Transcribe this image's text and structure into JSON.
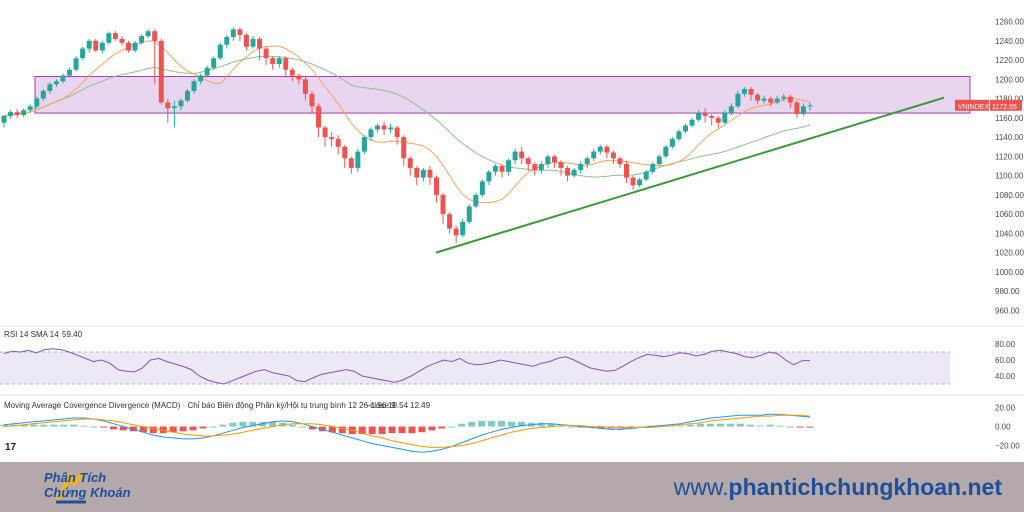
{
  "chart_data": {
    "type": "candlestick",
    "symbol": "VNINDEX",
    "last_price": "1172.55",
    "price_ticks": [
      "1260.00",
      "1240.00",
      "1220.00",
      "1200.00",
      "1180.00",
      "1160.00",
      "1140.00",
      "1120.00",
      "1100.00",
      "1080.00",
      "1060.00",
      "1040.00",
      "1020.00",
      "1000.00",
      "980.00",
      "960.00"
    ],
    "price_range": [
      950,
      1270
    ],
    "resistance_zone": [
      1165,
      1203
    ],
    "trendline": {
      "from": [
        0,
        1020
      ],
      "to": [
        1,
        1181
      ]
    },
    "colors": {
      "up": "#26a69a",
      "down": "#ef5350",
      "ma_fast": "#f7a35c",
      "ma_slow": "#8bc48a",
      "zone_fill": "#e6d1ef",
      "zone_border": "#9c27b0",
      "trend": "#3a9a3a",
      "rsi": "#7e57c2",
      "rsi_band": "#ede7f6",
      "macd": "#2196f3",
      "signal": "#ff9800",
      "badge": "#ef5350"
    },
    "candles": [
      [
        1155,
        1162,
        1150,
        1163
      ],
      [
        1162,
        1166,
        1159,
        1168
      ],
      [
        1166,
        1163,
        1160,
        1169
      ],
      [
        1163,
        1168,
        1161,
        1170
      ],
      [
        1168,
        1172,
        1165,
        1174
      ],
      [
        1172,
        1180,
        1170,
        1182
      ],
      [
        1180,
        1188,
        1178,
        1190
      ],
      [
        1188,
        1195,
        1185,
        1197
      ],
      [
        1195,
        1198,
        1192,
        1200
      ],
      [
        1198,
        1204,
        1196,
        1206
      ],
      [
        1204,
        1210,
        1202,
        1212
      ],
      [
        1210,
        1222,
        1208,
        1224
      ],
      [
        1222,
        1232,
        1220,
        1234
      ],
      [
        1232,
        1240,
        1228,
        1242
      ],
      [
        1240,
        1230,
        1228,
        1242
      ],
      [
        1230,
        1238,
        1227,
        1240
      ],
      [
        1238,
        1248,
        1236,
        1250
      ],
      [
        1248,
        1242,
        1240,
        1250
      ],
      [
        1242,
        1238,
        1235,
        1245
      ],
      [
        1238,
        1230,
        1228,
        1240
      ],
      [
        1230,
        1238,
        1228,
        1240
      ],
      [
        1238,
        1245,
        1236,
        1247
      ],
      [
        1245,
        1250,
        1243,
        1252
      ],
      [
        1250,
        1240,
        1195,
        1252
      ],
      [
        1240,
        1176,
        1174,
        1242
      ],
      [
        1176,
        1170,
        1155,
        1180
      ],
      [
        1170,
        1172,
        1150,
        1178
      ],
      [
        1172,
        1178,
        1168,
        1180
      ],
      [
        1178,
        1188,
        1176,
        1190
      ],
      [
        1188,
        1198,
        1185,
        1200
      ],
      [
        1198,
        1204,
        1195,
        1206
      ],
      [
        1204,
        1212,
        1202,
        1214
      ],
      [
        1212,
        1222,
        1210,
        1224
      ],
      [
        1222,
        1236,
        1220,
        1238
      ],
      [
        1236,
        1244,
        1232,
        1246
      ],
      [
        1244,
        1252,
        1240,
        1254
      ],
      [
        1252,
        1246,
        1240,
        1254
      ],
      [
        1246,
        1234,
        1230,
        1248
      ],
      [
        1234,
        1242,
        1232,
        1245
      ],
      [
        1242,
        1232,
        1220,
        1244
      ],
      [
        1232,
        1222,
        1215,
        1234
      ],
      [
        1222,
        1216,
        1210,
        1224
      ],
      [
        1216,
        1222,
        1212,
        1224
      ],
      [
        1222,
        1210,
        1202,
        1224
      ],
      [
        1210,
        1204,
        1198,
        1212
      ],
      [
        1204,
        1200,
        1195,
        1206
      ],
      [
        1200,
        1185,
        1178,
        1202
      ],
      [
        1185,
        1172,
        1165,
        1188
      ],
      [
        1172,
        1150,
        1140,
        1175
      ],
      [
        1150,
        1140,
        1130,
        1152
      ],
      [
        1140,
        1138,
        1130,
        1145
      ],
      [
        1138,
        1130,
        1122,
        1142
      ],
      [
        1130,
        1118,
        1108,
        1132
      ],
      [
        1118,
        1108,
        1102,
        1120
      ],
      [
        1108,
        1125,
        1104,
        1128
      ],
      [
        1125,
        1140,
        1122,
        1142
      ],
      [
        1140,
        1148,
        1136,
        1150
      ],
      [
        1148,
        1152,
        1145,
        1154
      ],
      [
        1152,
        1148,
        1142,
        1156
      ],
      [
        1148,
        1150,
        1144,
        1154
      ],
      [
        1150,
        1140,
        1132,
        1152
      ],
      [
        1140,
        1118,
        1110,
        1142
      ],
      [
        1118,
        1108,
        1100,
        1120
      ],
      [
        1108,
        1098,
        1090,
        1110
      ],
      [
        1098,
        1106,
        1094,
        1108
      ],
      [
        1106,
        1098,
        1090,
        1110
      ],
      [
        1098,
        1080,
        1072,
        1100
      ],
      [
        1080,
        1060,
        1050,
        1082
      ],
      [
        1060,
        1045,
        1040,
        1062
      ],
      [
        1045,
        1038,
        1030,
        1048
      ],
      [
        1038,
        1052,
        1036,
        1055
      ],
      [
        1052,
        1068,
        1050,
        1070
      ],
      [
        1068,
        1080,
        1066,
        1082
      ],
      [
        1080,
        1094,
        1078,
        1096
      ],
      [
        1094,
        1104,
        1090,
        1106
      ],
      [
        1104,
        1110,
        1100,
        1112
      ],
      [
        1110,
        1104,
        1098,
        1112
      ],
      [
        1104,
        1116,
        1100,
        1118
      ],
      [
        1116,
        1125,
        1112,
        1128
      ],
      [
        1125,
        1118,
        1112,
        1130
      ],
      [
        1118,
        1112,
        1105,
        1120
      ],
      [
        1112,
        1106,
        1100,
        1114
      ],
      [
        1106,
        1112,
        1102,
        1115
      ],
      [
        1112,
        1120,
        1108,
        1122
      ],
      [
        1120,
        1114,
        1108,
        1122
      ],
      [
        1114,
        1108,
        1100,
        1116
      ],
      [
        1108,
        1100,
        1094,
        1110
      ],
      [
        1100,
        1106,
        1098,
        1108
      ],
      [
        1106,
        1112,
        1102,
        1115
      ],
      [
        1112,
        1118,
        1108,
        1120
      ],
      [
        1118,
        1125,
        1115,
        1128
      ],
      [
        1125,
        1130,
        1122,
        1132
      ],
      [
        1130,
        1124,
        1118,
        1132
      ],
      [
        1124,
        1118,
        1112,
        1126
      ],
      [
        1118,
        1112,
        1108,
        1120
      ],
      [
        1112,
        1098,
        1092,
        1115
      ],
      [
        1098,
        1090,
        1085,
        1100
      ],
      [
        1090,
        1096,
        1088,
        1098
      ],
      [
        1096,
        1104,
        1094,
        1106
      ],
      [
        1104,
        1112,
        1102,
        1114
      ],
      [
        1112,
        1120,
        1110,
        1122
      ],
      [
        1120,
        1130,
        1118,
        1132
      ],
      [
        1130,
        1138,
        1128,
        1140
      ],
      [
        1138,
        1146,
        1136,
        1148
      ],
      [
        1146,
        1152,
        1144,
        1154
      ],
      [
        1152,
        1158,
        1150,
        1160
      ],
      [
        1158,
        1165,
        1156,
        1168
      ],
      [
        1165,
        1162,
        1155,
        1170
      ],
      [
        1162,
        1160,
        1152,
        1164
      ],
      [
        1160,
        1155,
        1150,
        1162
      ],
      [
        1155,
        1165,
        1153,
        1168
      ],
      [
        1165,
        1172,
        1163,
        1175
      ],
      [
        1172,
        1185,
        1170,
        1188
      ],
      [
        1185,
        1190,
        1182,
        1192
      ],
      [
        1190,
        1184,
        1178,
        1192
      ],
      [
        1184,
        1178,
        1174,
        1186
      ],
      [
        1178,
        1180,
        1175,
        1183
      ],
      [
        1180,
        1176,
        1172,
        1182
      ],
      [
        1176,
        1180,
        1174,
        1183
      ],
      [
        1180,
        1182,
        1177,
        1185
      ],
      [
        1182,
        1176,
        1170,
        1184
      ],
      [
        1176,
        1164,
        1160,
        1178
      ],
      [
        1164,
        1172,
        1162,
        1175
      ],
      [
        1172,
        1173,
        1168,
        1176
      ]
    ],
    "rsi": {
      "label": "RSI 14 SMA 14",
      "value": "59.40",
      "ticks": [
        "80.00",
        "60.00",
        "40.00"
      ],
      "range": [
        20,
        90
      ],
      "bands": [
        30,
        70
      ],
      "values": [
        68,
        71,
        70,
        72,
        69,
        73,
        74,
        73,
        70,
        66,
        62,
        58,
        60,
        56,
        48,
        46,
        45,
        50,
        60,
        62,
        58,
        55,
        52,
        48,
        40,
        35,
        32,
        30,
        34,
        38,
        42,
        46,
        48,
        44,
        42,
        40,
        34,
        33,
        38,
        42,
        44,
        46,
        48,
        46,
        40,
        38,
        36,
        34,
        32,
        35,
        40,
        46,
        52,
        56,
        60,
        58,
        62,
        56,
        54,
        55,
        57,
        60,
        58,
        56,
        54,
        52,
        56,
        58,
        62,
        64,
        60,
        55,
        50,
        48,
        46,
        47,
        52,
        58,
        63,
        67,
        66,
        64,
        66,
        69,
        68,
        65,
        67,
        71,
        72,
        70,
        68,
        64,
        63,
        66,
        70,
        68,
        60,
        54,
        59,
        59.4
      ]
    },
    "macd": {
      "label": "Moving Average Covergence Divergence (MACD) · Chỉ báo Biến động Phân kỳ/Hội tụ trung bình 12 26 close 9",
      "values_text": [
        "−1.96",
        "10.54",
        "12.49"
      ],
      "ticks": [
        "20.00",
        "0.00",
        "−20.00"
      ],
      "range": [
        -30,
        28
      ],
      "macd_line": [
        2,
        3,
        4,
        5,
        6,
        7,
        8,
        9,
        9,
        8,
        6,
        3,
        0,
        -3,
        -6,
        -9,
        -11,
        -12,
        -13,
        -13,
        -12,
        -10,
        -7,
        -4,
        -1,
        1,
        3,
        5,
        6,
        5,
        3,
        0,
        -3,
        -6,
        -9,
        -12,
        -15,
        -18,
        -20,
        -22,
        -24,
        -26,
        -27,
        -26,
        -24,
        -21,
        -17,
        -13,
        -9,
        -6,
        -3,
        -1,
        1,
        2,
        3,
        3,
        2,
        1,
        0,
        -1,
        -2,
        -3,
        -3,
        -2,
        -1,
        0,
        1,
        2,
        3,
        5,
        7,
        9,
        10,
        11,
        12,
        12,
        12,
        13,
        13,
        12,
        11,
        10
      ],
      "signal_line": [
        0,
        1,
        2,
        3,
        4,
        5,
        6,
        7,
        8,
        8,
        7,
        6,
        4,
        2,
        0,
        -2,
        -4,
        -6,
        -8,
        -9,
        -10,
        -10,
        -9,
        -8,
        -6,
        -4,
        -2,
        0,
        2,
        3,
        3,
        3,
        2,
        0,
        -2,
        -4,
        -7,
        -10,
        -12,
        -15,
        -17,
        -19,
        -21,
        -22,
        -22,
        -21,
        -20,
        -18,
        -15,
        -12,
        -9,
        -6,
        -4,
        -2,
        -1,
        0,
        1,
        1,
        1,
        0,
        0,
        -1,
        -1,
        -1,
        -1,
        -1,
        0,
        1,
        2,
        3,
        4,
        6,
        7,
        8,
        9,
        10,
        11,
        11,
        12,
        12,
        12,
        11
      ]
    }
  },
  "footer": {
    "brand_line1": "Phân Tích",
    "brand_line2": "Chứng Khoán",
    "url_prefix": "www.",
    "url_main": "phantichchungkhoan.net"
  },
  "tv_logo": "17"
}
